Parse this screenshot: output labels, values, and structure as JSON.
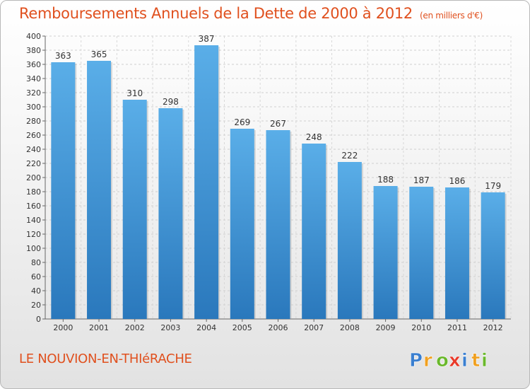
{
  "title": "Remboursements Annuels de la Dette de 2000 à 2012",
  "unit_note": "(en milliers d'€)",
  "city": "LE NOUVION-EN-THIéRACHE",
  "logo": {
    "letters": [
      "P",
      "r",
      "o",
      "x",
      "i",
      "t",
      "i"
    ],
    "colors": [
      "#3a7fd0",
      "#f0a020",
      "#6ab82c",
      "#e83a2a",
      "#3a7fd0",
      "#f0a020",
      "#6ab82c"
    ]
  },
  "colors": {
    "bar_top": "#5aaee8",
    "bar_bottom": "#2a78bc",
    "title": "#e0501e"
  },
  "chart_data": {
    "type": "bar",
    "categories": [
      "2000",
      "2001",
      "2002",
      "2003",
      "2004",
      "2005",
      "2006",
      "2007",
      "2008",
      "2009",
      "2010",
      "2011",
      "2012"
    ],
    "values": [
      363,
      365,
      310,
      298,
      387,
      269,
      267,
      248,
      222,
      188,
      187,
      186,
      179
    ],
    "data_labels": [
      "363",
      "365",
      "310",
      "298",
      "387",
      "269",
      "267",
      "248",
      "222",
      "188",
      "187",
      "186",
      "179"
    ],
    "y_ticks": [
      0,
      20,
      40,
      60,
      80,
      100,
      120,
      140,
      160,
      180,
      200,
      220,
      240,
      260,
      280,
      300,
      320,
      340,
      360,
      380,
      400
    ],
    "ylim": [
      0,
      400
    ],
    "grid": true,
    "legend": "none"
  }
}
